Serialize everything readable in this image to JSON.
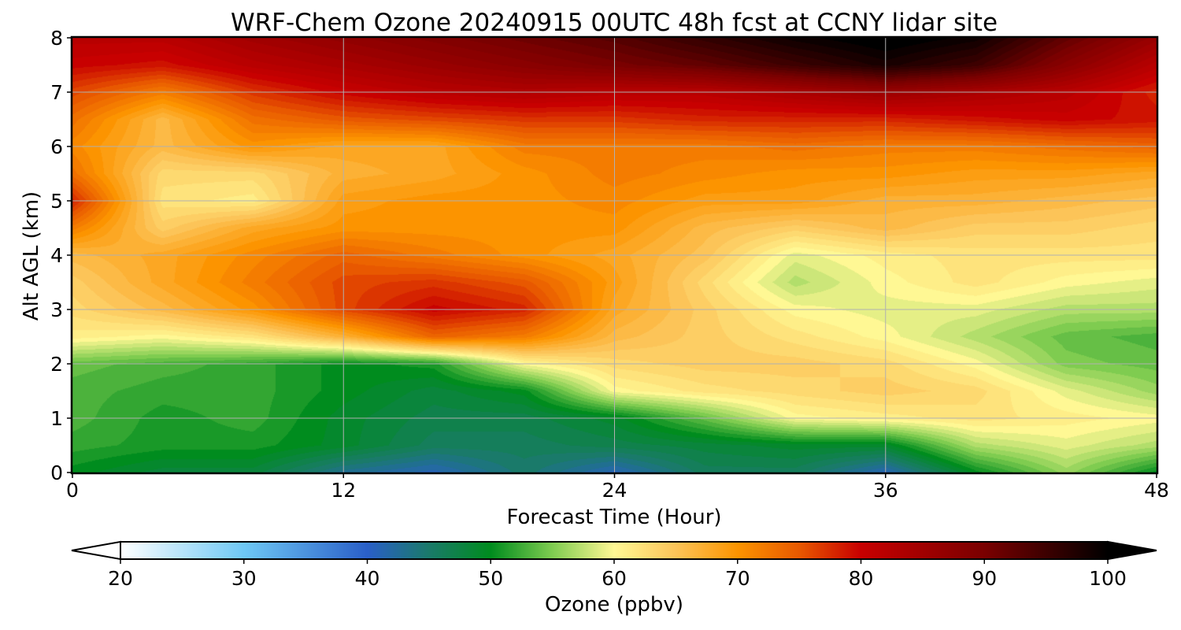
{
  "chart_data": {
    "type": "heatmap",
    "title": "WRF-Chem Ozone  20240915 00UTC 48h fcst at CCNY lidar site",
    "xlabel": "Forecast Time (Hour)",
    "ylabel": "Alt AGL (km)",
    "xlim": [
      0,
      48
    ],
    "ylim": [
      0,
      8
    ],
    "xticks": [
      0,
      12,
      24,
      36,
      48
    ],
    "yticks": [
      0,
      1,
      2,
      3,
      4,
      5,
      6,
      7,
      8
    ],
    "grid": true,
    "colorbar": {
      "label": "Ozone  (ppbv)",
      "min": 20,
      "max": 100,
      "extend": "both",
      "ticks": [
        20,
        30,
        40,
        50,
        60,
        70,
        80,
        90,
        100
      ],
      "stops": [
        {
          "v": 20,
          "c": "#ffffff"
        },
        {
          "v": 30,
          "c": "#6ec8f5"
        },
        {
          "v": 40,
          "c": "#2a5fc8"
        },
        {
          "v": 45,
          "c": "#1a7a6a"
        },
        {
          "v": 50,
          "c": "#008c1e"
        },
        {
          "v": 55,
          "c": "#7fcc50"
        },
        {
          "v": 60,
          "c": "#fff894"
        },
        {
          "v": 65,
          "c": "#fcc458"
        },
        {
          "v": 70,
          "c": "#fc9400"
        },
        {
          "v": 75,
          "c": "#e85800"
        },
        {
          "v": 80,
          "c": "#c80000"
        },
        {
          "v": 90,
          "c": "#7a0000"
        },
        {
          "v": 100,
          "c": "#000000"
        }
      ]
    },
    "x": [
      0,
      4,
      8,
      12,
      16,
      20,
      24,
      28,
      32,
      36,
      40,
      44,
      48
    ],
    "y": [
      0,
      0.5,
      1,
      1.5,
      2,
      2.5,
      3,
      3.5,
      4,
      4.5,
      5,
      5.5,
      6,
      6.5,
      7,
      7.5,
      8
    ],
    "z": [
      [
        50,
        48,
        48,
        43,
        41,
        45,
        41,
        46,
        46,
        41,
        50,
        56,
        50
      ],
      [
        52,
        51,
        51,
        49,
        46,
        46,
        47,
        48,
        49,
        49,
        57,
        59,
        57
      ],
      [
        53,
        51,
        52,
        49,
        47,
        47,
        49,
        54,
        60,
        61,
        62,
        61,
        60
      ],
      [
        53,
        52,
        52,
        50,
        48,
        50,
        60,
        62,
        63,
        64,
        63,
        59,
        56
      ],
      [
        54,
        53,
        52,
        50,
        51,
        60,
        63,
        64,
        64,
        63,
        60,
        55,
        54
      ],
      [
        61,
        60,
        62,
        67,
        74,
        72,
        66,
        64,
        62,
        60,
        57,
        54,
        53
      ],
      [
        63,
        66,
        70,
        76,
        80,
        78,
        68,
        64,
        60,
        59,
        59,
        57,
        57
      ],
      [
        64,
        68,
        72,
        76,
        77,
        75,
        69,
        63,
        57,
        60,
        62,
        60,
        59
      ],
      [
        66,
        68,
        71,
        74,
        72,
        70,
        68,
        65,
        59,
        61,
        62,
        62,
        62
      ],
      [
        72,
        64,
        68,
        70,
        70,
        70,
        70,
        66,
        64,
        66,
        64,
        64,
        63
      ],
      [
        78,
        62,
        61,
        69,
        70,
        70,
        71,
        69,
        69,
        67,
        67,
        66,
        65
      ],
      [
        73,
        63,
        63,
        67,
        68,
        70,
        72,
        71,
        70,
        70,
        69,
        69,
        68
      ],
      [
        71,
        66,
        70,
        68,
        68,
        72,
        72,
        72,
        73,
        72,
        72,
        73,
        74
      ],
      [
        73,
        66,
        73,
        75,
        76,
        77,
        77,
        78,
        78,
        78,
        79,
        80,
        79
      ],
      [
        76,
        72,
        77,
        80,
        82,
        83,
        82,
        82,
        84,
        86,
        84,
        82,
        78
      ],
      [
        80,
        79,
        82,
        84,
        86,
        88,
        90,
        92,
        95,
        98,
        95,
        88,
        82
      ],
      [
        82,
        82,
        85,
        87,
        89,
        91,
        93,
        96,
        99,
        101,
        99,
        92,
        86
      ]
    ]
  }
}
